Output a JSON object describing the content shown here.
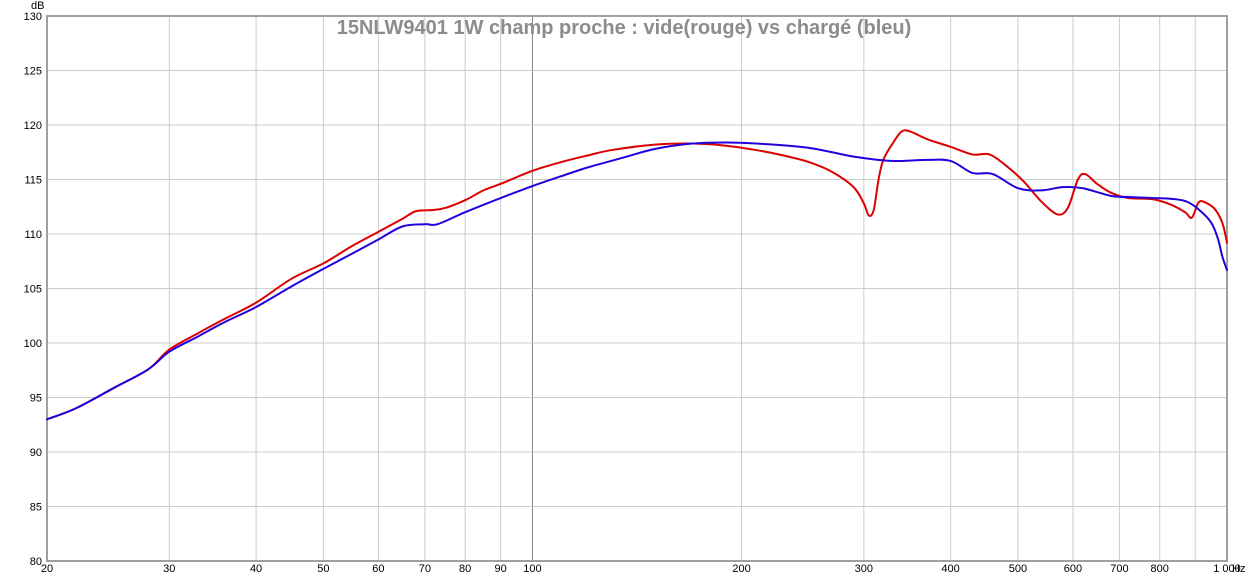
{
  "chart_data": {
    "type": "line",
    "title": "15NLW9401 1W champ proche : vide(rouge) vs chargé (bleu)",
    "xlabel": "Hz",
    "ylabel": "dB",
    "xscale": "log",
    "xlim": [
      20,
      1000
    ],
    "ylim": [
      80,
      130
    ],
    "grid": true,
    "x_ticks": [
      {
        "v": 20,
        "label": "20"
      },
      {
        "v": 30,
        "label": "30"
      },
      {
        "v": 40,
        "label": "40"
      },
      {
        "v": 50,
        "label": "50"
      },
      {
        "v": 60,
        "label": "60"
      },
      {
        "v": 70,
        "label": "70"
      },
      {
        "v": 80,
        "label": "80"
      },
      {
        "v": 90,
        "label": "90"
      },
      {
        "v": 100,
        "label": "100"
      },
      {
        "v": 200,
        "label": "200"
      },
      {
        "v": 300,
        "label": "300"
      },
      {
        "v": 400,
        "label": "400"
      },
      {
        "v": 500,
        "label": "500"
      },
      {
        "v": 600,
        "label": "600"
      },
      {
        "v": 700,
        "label": "700"
      },
      {
        "v": 800,
        "label": "800"
      },
      {
        "v": 1000,
        "label": "1 000"
      }
    ],
    "y_ticks": [
      {
        "v": 80,
        "label": "80"
      },
      {
        "v": 85,
        "label": "85"
      },
      {
        "v": 90,
        "label": "90"
      },
      {
        "v": 95,
        "label": "95"
      },
      {
        "v": 100,
        "label": "100"
      },
      {
        "v": 105,
        "label": "105"
      },
      {
        "v": 110,
        "label": "110"
      },
      {
        "v": 115,
        "label": "115"
      },
      {
        "v": 120,
        "label": "120"
      },
      {
        "v": 125,
        "label": "125"
      },
      {
        "v": 130,
        "label": "130"
      }
    ],
    "series": [
      {
        "color": "#dd0000",
        "points": [
          [
            20,
            93.0
          ],
          [
            22,
            94.0
          ],
          [
            25,
            95.9
          ],
          [
            28,
            97.6
          ],
          [
            30,
            99.4
          ],
          [
            33,
            100.9
          ],
          [
            36,
            102.2
          ],
          [
            40,
            103.7
          ],
          [
            45,
            105.9
          ],
          [
            50,
            107.3
          ],
          [
            55,
            108.9
          ],
          [
            60,
            110.2
          ],
          [
            65,
            111.4
          ],
          [
            68,
            112.1
          ],
          [
            72,
            112.2
          ],
          [
            75,
            112.4
          ],
          [
            80,
            113.1
          ],
          [
            85,
            114.0
          ],
          [
            90,
            114.6
          ],
          [
            100,
            115.8
          ],
          [
            110,
            116.6
          ],
          [
            120,
            117.2
          ],
          [
            130,
            117.7
          ],
          [
            150,
            118.2
          ],
          [
            170,
            118.3
          ],
          [
            190,
            118.1
          ],
          [
            210,
            117.7
          ],
          [
            230,
            117.2
          ],
          [
            250,
            116.6
          ],
          [
            270,
            115.7
          ],
          [
            290,
            114.3
          ],
          [
            300,
            112.8
          ],
          [
            305,
            111.7
          ],
          [
            310,
            112.2
          ],
          [
            315,
            115.0
          ],
          [
            320,
            116.8
          ],
          [
            330,
            118.3
          ],
          [
            340,
            119.4
          ],
          [
            350,
            119.4
          ],
          [
            370,
            118.7
          ],
          [
            400,
            118.0
          ],
          [
            430,
            117.3
          ],
          [
            455,
            117.3
          ],
          [
            480,
            116.3
          ],
          [
            510,
            114.8
          ],
          [
            540,
            113.0
          ],
          [
            570,
            111.8
          ],
          [
            590,
            112.4
          ],
          [
            610,
            115.0
          ],
          [
            625,
            115.5
          ],
          [
            650,
            114.6
          ],
          [
            680,
            113.8
          ],
          [
            720,
            113.3
          ],
          [
            780,
            113.2
          ],
          [
            830,
            112.7
          ],
          [
            870,
            112.0
          ],
          [
            890,
            111.5
          ],
          [
            910,
            112.9
          ],
          [
            930,
            112.9
          ],
          [
            960,
            112.3
          ],
          [
            985,
            111.0
          ],
          [
            1000,
            109.2
          ]
        ]
      },
      {
        "color": "#2200dd",
        "points": [
          [
            20,
            93.0
          ],
          [
            22,
            94.0
          ],
          [
            25,
            95.9
          ],
          [
            28,
            97.6
          ],
          [
            30,
            99.2
          ],
          [
            33,
            100.6
          ],
          [
            36,
            101.9
          ],
          [
            40,
            103.3
          ],
          [
            45,
            105.2
          ],
          [
            50,
            106.8
          ],
          [
            55,
            108.2
          ],
          [
            60,
            109.5
          ],
          [
            65,
            110.7
          ],
          [
            70,
            110.9
          ],
          [
            73,
            110.9
          ],
          [
            80,
            112.0
          ],
          [
            90,
            113.3
          ],
          [
            100,
            114.4
          ],
          [
            110,
            115.3
          ],
          [
            120,
            116.1
          ],
          [
            135,
            117.0
          ],
          [
            150,
            117.8
          ],
          [
            170,
            118.3
          ],
          [
            190,
            118.4
          ],
          [
            210,
            118.3
          ],
          [
            250,
            117.9
          ],
          [
            290,
            117.1
          ],
          [
            330,
            116.7
          ],
          [
            370,
            116.8
          ],
          [
            400,
            116.7
          ],
          [
            430,
            115.6
          ],
          [
            460,
            115.5
          ],
          [
            500,
            114.2
          ],
          [
            540,
            114.0
          ],
          [
            580,
            114.3
          ],
          [
            620,
            114.2
          ],
          [
            680,
            113.5
          ],
          [
            720,
            113.4
          ],
          [
            780,
            113.3
          ],
          [
            840,
            113.2
          ],
          [
            880,
            112.9
          ],
          [
            920,
            112.0
          ],
          [
            950,
            111.0
          ],
          [
            970,
            109.6
          ],
          [
            985,
            107.9
          ],
          [
            1000,
            106.7
          ]
        ]
      }
    ]
  }
}
